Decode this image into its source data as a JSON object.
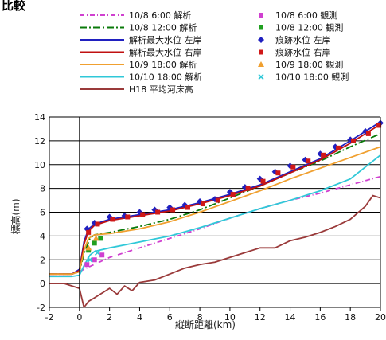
{
  "title": "比較",
  "chart_data": {
    "type": "line",
    "title": "比較",
    "xlabel": "縦断距離(km)",
    "ylabel": "標高(m)",
    "xlim": [
      -2,
      20
    ],
    "ylim": [
      -2,
      14
    ],
    "xticks": [
      -2,
      0,
      2,
      4,
      6,
      8,
      10,
      12,
      14,
      16,
      18,
      20
    ],
    "yticks": [
      -2,
      0,
      2,
      4,
      6,
      8,
      10,
      12,
      14
    ],
    "grid": "horizontal",
    "legend_position": "top",
    "series": [
      {
        "name": "10/8 6:00 解析",
        "kind": "line",
        "color": "#d040d0",
        "dash": "6,3,1,3",
        "x": [
          -2,
          -0.5,
          0,
          0.3,
          0.8,
          2,
          4,
          6,
          8,
          10,
          12,
          14,
          16,
          18,
          20
        ],
        "y": [
          0.8,
          0.8,
          1.0,
          1.2,
          1.5,
          2.2,
          3.0,
          3.8,
          4.6,
          5.5,
          6.3,
          7.0,
          7.6,
          8.3,
          9.0
        ]
      },
      {
        "name": "10/8 12:00 解析",
        "kind": "line",
        "color": "#0a7a0a",
        "dash": "9,3,2,3",
        "x": [
          -2,
          -0.5,
          0,
          0.3,
          0.7,
          1,
          2,
          4,
          6,
          8,
          10,
          12,
          14,
          16,
          18,
          20
        ],
        "y": [
          0.8,
          0.8,
          1.0,
          2.5,
          3.8,
          4.1,
          4.3,
          4.8,
          5.4,
          6.2,
          7.2,
          8.2,
          9.3,
          10.3,
          11.5,
          12.6
        ]
      },
      {
        "name": "解析最大水位 左岸",
        "kind": "line",
        "color": "#2020c0",
        "dash": "",
        "x": [
          -2,
          -0.5,
          0,
          0.3,
          0.6,
          1,
          2,
          3,
          4,
          6,
          8,
          10,
          12,
          14,
          16,
          18,
          20
        ],
        "y": [
          0.8,
          0.8,
          1.2,
          3.5,
          4.6,
          5.0,
          5.4,
          5.6,
          5.8,
          6.2,
          6.8,
          7.5,
          8.3,
          9.4,
          10.5,
          12.0,
          13.6
        ]
      },
      {
        "name": "解析最大水位 右岸",
        "kind": "line",
        "color": "#c01010",
        "dash": "",
        "x": [
          -2,
          -0.5,
          0,
          0.3,
          0.6,
          1,
          2,
          3,
          4,
          6,
          8,
          10,
          12,
          14,
          16,
          18,
          20
        ],
        "y": [
          0.8,
          0.8,
          1.1,
          3.3,
          4.4,
          4.9,
          5.3,
          5.5,
          5.7,
          6.1,
          6.7,
          7.4,
          8.2,
          9.3,
          10.4,
          11.8,
          13.4
        ]
      },
      {
        "name": "10/9 18:00 解析",
        "kind": "line",
        "color": "#f0a030",
        "dash": "",
        "x": [
          -2,
          -0.5,
          0,
          0.3,
          0.6,
          1,
          2,
          4,
          6,
          8,
          10,
          12,
          14,
          16,
          18,
          20
        ],
        "y": [
          0.8,
          0.8,
          1.0,
          2.8,
          3.8,
          4.1,
          4.2,
          4.6,
          5.2,
          6.0,
          6.9,
          7.8,
          8.8,
          9.7,
          10.6,
          11.5
        ]
      },
      {
        "name": "10/10 18:00 解析",
        "kind": "line",
        "color": "#30c8d8",
        "dash": "",
        "x": [
          -2,
          -0.5,
          0,
          0.3,
          0.7,
          1,
          2,
          4,
          6,
          8,
          10,
          12,
          14,
          16,
          18,
          20
        ],
        "y": [
          0.6,
          0.6,
          0.7,
          1.5,
          2.4,
          2.7,
          3.0,
          3.5,
          4.0,
          4.7,
          5.5,
          6.3,
          7.0,
          7.8,
          8.8,
          10.8
        ]
      },
      {
        "name": "H18 平均河床高",
        "kind": "line",
        "color": "#9a3a3a",
        "dash": "",
        "x": [
          -2,
          -1,
          0,
          0.3,
          0.6,
          1,
          1.5,
          2,
          2.5,
          3,
          3.5,
          4,
          5,
          6,
          7,
          8,
          9,
          10,
          11,
          12,
          13,
          14,
          15,
          16,
          17,
          18,
          19,
          19.5,
          20
        ],
        "y": [
          0,
          0,
          -0.4,
          -2,
          -1.5,
          -1.2,
          -0.8,
          -0.4,
          -0.9,
          -0.2,
          -0.6,
          0.1,
          0.3,
          0.8,
          1.3,
          1.6,
          1.8,
          2.2,
          2.6,
          3.0,
          3.0,
          3.6,
          3.9,
          4.3,
          4.8,
          5.4,
          6.5,
          7.4,
          7.2
        ]
      },
      {
        "name": "10/8 6:00 観測",
        "kind": "marker",
        "shape": "square",
        "color": "#d040d0",
        "x": [
          0.5,
          1.0,
          1.5
        ],
        "y": [
          1.6,
          2.0,
          2.4
        ]
      },
      {
        "name": "10/8 12:00 観測",
        "kind": "marker",
        "shape": "square",
        "color": "#20a020",
        "x": [
          0.6,
          1.0,
          1.4
        ],
        "y": [
          2.8,
          3.4,
          3.8
        ]
      },
      {
        "name": "痕跡水位 左岸",
        "kind": "marker",
        "shape": "diamond",
        "color": "#2020c0",
        "x": [
          0.5,
          1,
          2,
          3,
          4,
          5,
          6,
          7,
          8,
          9,
          10,
          11,
          12,
          13,
          14,
          15,
          16,
          17,
          18,
          19,
          20
        ],
        "y": [
          4.6,
          5.1,
          5.6,
          5.7,
          6.0,
          6.2,
          6.4,
          6.6,
          6.9,
          7.1,
          7.7,
          8.1,
          8.8,
          9.4,
          9.9,
          10.4,
          10.9,
          11.5,
          12.1,
          12.8,
          13.5
        ]
      },
      {
        "name": "痕跡水位 右岸",
        "kind": "marker",
        "shape": "square",
        "color": "#d01818",
        "x": [
          0.6,
          1.2,
          2.2,
          3.2,
          4.2,
          5.2,
          6.2,
          7.2,
          8.2,
          9.2,
          10.2,
          11.2,
          12.2,
          13.2,
          14.2,
          15.2,
          16.2,
          17.2,
          18.2,
          19.2,
          19.9
        ],
        "y": [
          4.3,
          5.0,
          5.4,
          5.6,
          5.8,
          6.0,
          6.2,
          6.4,
          6.7,
          7.0,
          7.5,
          8.0,
          8.6,
          9.3,
          9.8,
          10.3,
          10.8,
          11.4,
          12.0,
          12.6,
          13.3
        ]
      },
      {
        "name": "10/9 18:00 観測",
        "kind": "marker",
        "shape": "triangle",
        "color": "#f0a030",
        "x": [
          0.6,
          1.1
        ],
        "y": [
          3.0,
          3.8
        ]
      },
      {
        "name": "10/10 18:00 観測",
        "kind": "marker",
        "shape": "cross",
        "color": "#30c8d8",
        "x": [
          0.7,
          1.2
        ],
        "y": [
          2.0,
          2.6
        ]
      }
    ]
  }
}
